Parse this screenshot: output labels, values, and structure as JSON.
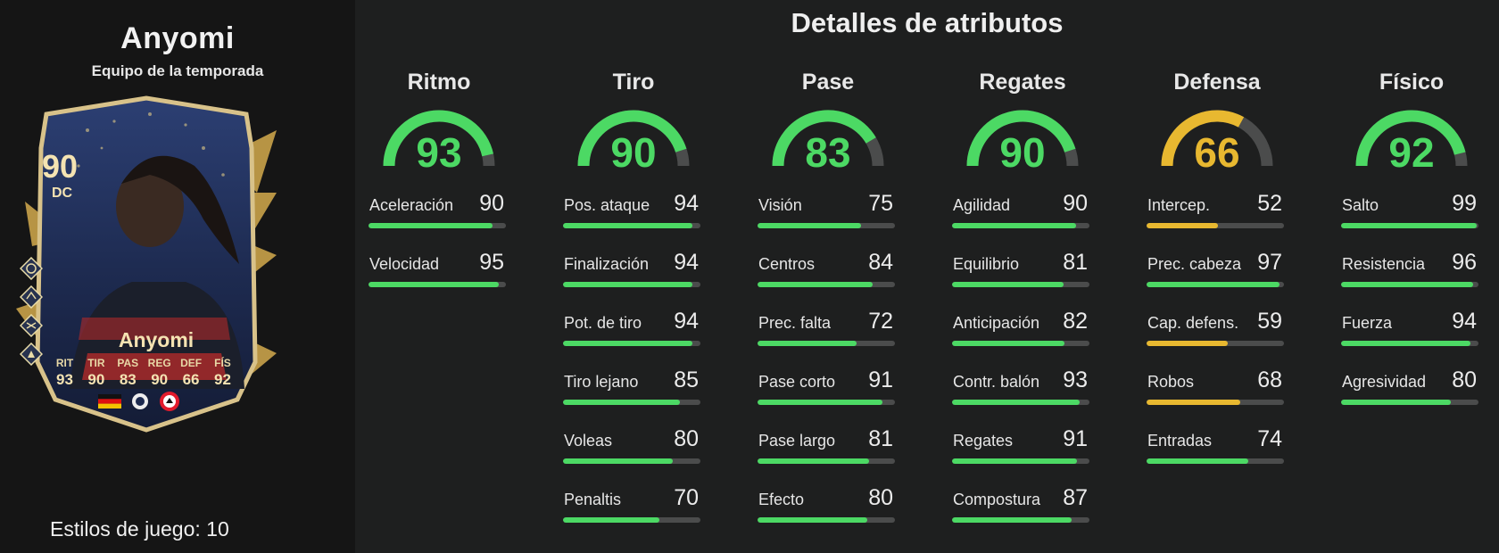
{
  "player": {
    "name": "Anyomi",
    "subtitle": "Equipo de la temporada",
    "card": {
      "rating": "90",
      "position": "DC",
      "name": "Anyomi",
      "stats": [
        {
          "label": "RIT",
          "value": "93"
        },
        {
          "label": "TIR",
          "value": "90"
        },
        {
          "label": "PAS",
          "value": "83"
        },
        {
          "label": "REG",
          "value": "90"
        },
        {
          "label": "DEF",
          "value": "66"
        },
        {
          "label": "FÍS",
          "value": "92"
        }
      ]
    },
    "playstyles": "Estilos de juego: 10"
  },
  "section_title": "Detalles de atributos",
  "colors": {
    "green": "#4cd964",
    "yellow": "#e8b830",
    "track": "#4b4c4c",
    "background": "#1e1f1f",
    "panel": "#151515"
  },
  "categories": [
    {
      "label": "Ritmo",
      "value": 93,
      "attributes": [
        {
          "name": "Aceleración",
          "value": 90
        },
        {
          "name": "Velocidad",
          "value": 95
        }
      ]
    },
    {
      "label": "Tiro",
      "value": 90,
      "attributes": [
        {
          "name": "Pos. ataque",
          "value": 94
        },
        {
          "name": "Finalización",
          "value": 94
        },
        {
          "name": "Pot. de tiro",
          "value": 94
        },
        {
          "name": "Tiro lejano",
          "value": 85
        },
        {
          "name": "Voleas",
          "value": 80
        },
        {
          "name": "Penaltis",
          "value": 70
        }
      ]
    },
    {
      "label": "Pase",
      "value": 83,
      "attributes": [
        {
          "name": "Visión",
          "value": 75
        },
        {
          "name": "Centros",
          "value": 84
        },
        {
          "name": "Prec. falta",
          "value": 72
        },
        {
          "name": "Pase corto",
          "value": 91
        },
        {
          "name": "Pase largo",
          "value": 81
        },
        {
          "name": "Efecto",
          "value": 80
        }
      ]
    },
    {
      "label": "Regates",
      "value": 90,
      "attributes": [
        {
          "name": "Agilidad",
          "value": 90
        },
        {
          "name": "Equilibrio",
          "value": 81
        },
        {
          "name": "Anticipación",
          "value": 82
        },
        {
          "name": "Contr. balón",
          "value": 93
        },
        {
          "name": "Regates",
          "value": 91
        },
        {
          "name": "Compostura",
          "value": 87
        }
      ]
    },
    {
      "label": "Defensa",
      "value": 66,
      "attributes": [
        {
          "name": "Intercep.",
          "value": 52
        },
        {
          "name": "Prec. cabeza",
          "value": 97
        },
        {
          "name": "Cap. defens.",
          "value": 59
        },
        {
          "name": "Robos",
          "value": 68
        },
        {
          "name": "Entradas",
          "value": 74
        }
      ]
    },
    {
      "label": "Físico",
      "value": 92,
      "attributes": [
        {
          "name": "Salto",
          "value": 99
        },
        {
          "name": "Resistencia",
          "value": 96
        },
        {
          "name": "Fuerza",
          "value": 94
        },
        {
          "name": "Agresividad",
          "value": 80
        }
      ]
    }
  ]
}
